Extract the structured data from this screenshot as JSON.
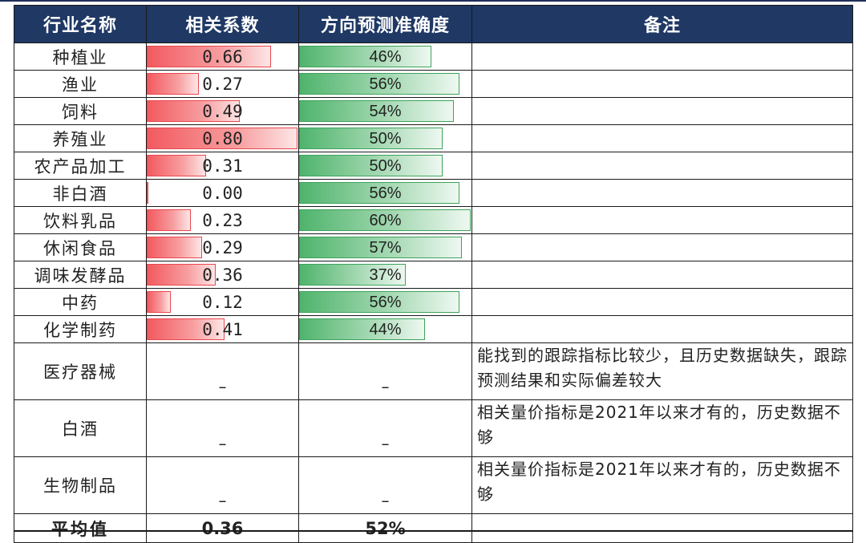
{
  "header": {
    "col1": "行业名称",
    "col2": "相关系数",
    "col3": "方向预测准确度",
    "col4": "备注"
  },
  "rows": [
    {
      "name": "种植业",
      "corr": "0.66",
      "corr_value": 0.66,
      "acc": "46%",
      "acc_value": 46
    },
    {
      "name": "渔业",
      "corr": "0.27",
      "corr_value": 0.27,
      "acc": "56%",
      "acc_value": 56
    },
    {
      "name": "饲料",
      "corr": "0.49",
      "corr_value": 0.49,
      "acc": "54%",
      "acc_value": 54
    },
    {
      "name": "养殖业",
      "corr": "0.80",
      "corr_value": 0.8,
      "acc": "50%",
      "acc_value": 50
    },
    {
      "name": "农产品加工",
      "corr": "0.31",
      "corr_value": 0.31,
      "acc": "50%",
      "acc_value": 50
    },
    {
      "name": "非白酒",
      "corr": "0.00",
      "corr_value": 0.0,
      "acc": "56%",
      "acc_value": 56
    },
    {
      "name": "饮料乳品",
      "corr": "0.23",
      "corr_value": 0.23,
      "acc": "60%",
      "acc_value": 60
    },
    {
      "name": "休闲食品",
      "corr": "0.29",
      "corr_value": 0.29,
      "acc": "57%",
      "acc_value": 57
    },
    {
      "name": "调味发酵品",
      "corr": "0.36",
      "corr_value": 0.36,
      "acc": "37%",
      "acc_value": 37
    },
    {
      "name": "中药",
      "corr": "0.12",
      "corr_value": 0.12,
      "acc": "56%",
      "acc_value": 56
    },
    {
      "name": "化学制药",
      "corr": "0.41",
      "corr_value": 0.41,
      "acc": "44%",
      "acc_value": 44
    }
  ],
  "note_rows": [
    {
      "name": "医疗器械",
      "corr": "–",
      "acc": "–",
      "note": "能找到的跟踪指标比较少，且历史数据缺失，跟踪预测结果和实际偏差较大"
    },
    {
      "name": "白酒",
      "corr": "–",
      "acc": "–",
      "note": "相关量价指标是2021年以来才有的，历史数据不够"
    },
    {
      "name": "生物制品",
      "corr": "–",
      "acc": "–",
      "note": "相关量价指标是2021年以来才有的，历史数据不够"
    }
  ],
  "average": {
    "label": "平均值",
    "corr": "0.36",
    "acc": "52%"
  },
  "colors": {
    "header_bg": "#1f3864",
    "corr_bar": "#f25a5f",
    "acc_bar": "#4fb46c"
  }
}
